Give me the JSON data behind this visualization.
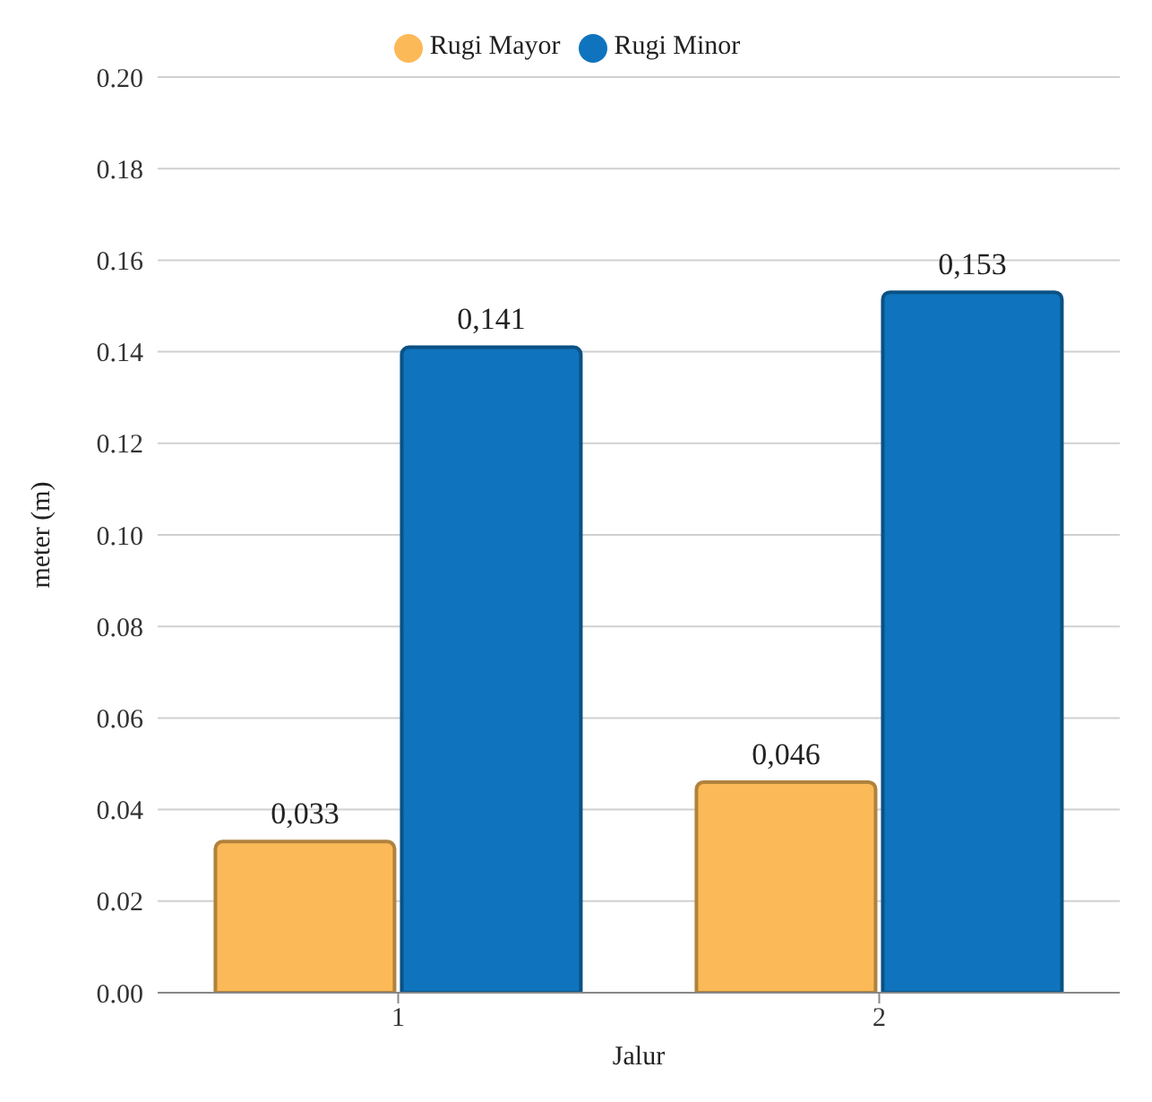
{
  "chart_data": {
    "type": "bar",
    "xlabel": "Jalur",
    "ylabel": "meter (m)",
    "categories": [
      "1",
      "2"
    ],
    "series": [
      {
        "name": "Rugi Mayor",
        "color": "#fbb957",
        "values": [
          0.033,
          0.046
        ],
        "value_labels": [
          "0,033",
          "0,046"
        ]
      },
      {
        "name": "Rugi Minor",
        "color": "#0f74bd",
        "values": [
          0.141,
          0.153
        ],
        "value_labels": [
          "0,141",
          "0,153"
        ]
      }
    ],
    "ylim": [
      0,
      0.2
    ],
    "yticks": [
      {
        "value": 0,
        "label": "0.00"
      },
      {
        "value": 0.02,
        "label": "0.02"
      },
      {
        "value": 0.04,
        "label": "0.04"
      },
      {
        "value": 0.06,
        "label": "0.06"
      },
      {
        "value": 0.08,
        "label": "0.08"
      },
      {
        "value": 0.1,
        "label": "0.10"
      },
      {
        "value": 0.12,
        "label": "0.12"
      },
      {
        "value": 0.14,
        "label": "0.14"
      },
      {
        "value": 0.16,
        "label": "0.16"
      },
      {
        "value": 0.18,
        "label": "0.18"
      },
      {
        "value": 0.2,
        "label": "0.20"
      }
    ],
    "grid": "y",
    "legend": "top"
  }
}
